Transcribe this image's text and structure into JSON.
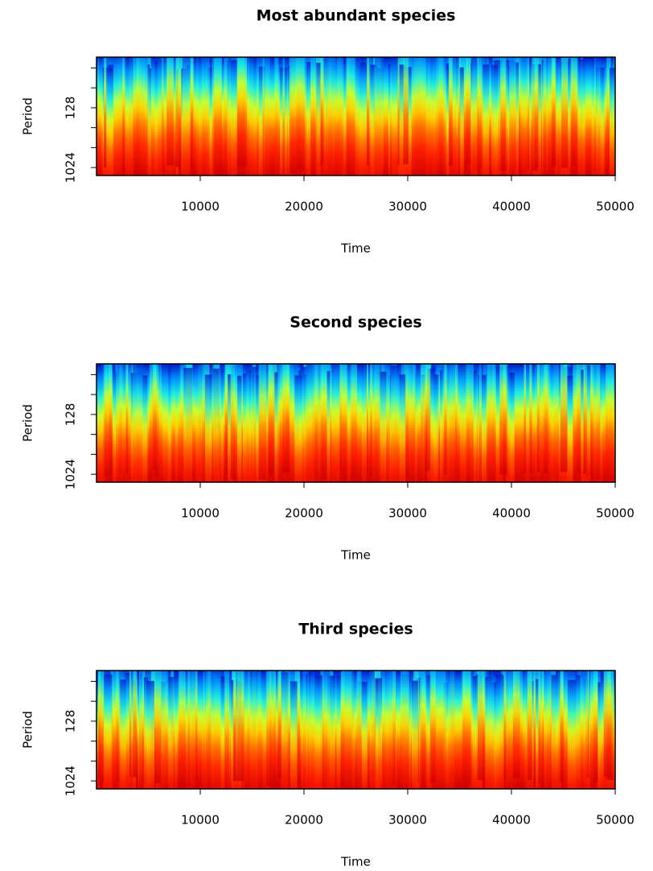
{
  "chart_data": [
    {
      "type": "wavelet-power",
      "title": "Most abundant species",
      "xlabel": "Time",
      "ylabel": "Period",
      "xlim": [
        0,
        50000
      ],
      "xticks": [
        10000,
        20000,
        30000,
        40000,
        50000
      ],
      "ylim": [
        22,
        1350
      ],
      "ylog": true,
      "yreversed": true,
      "yticks": [
        128,
        1024
      ],
      "yminorticks": [
        32,
        64,
        256,
        512
      ]
    },
    {
      "type": "wavelet-power",
      "title": "Second species",
      "xlabel": "Time",
      "ylabel": "Period",
      "xlim": [
        0,
        50000
      ],
      "xticks": [
        10000,
        20000,
        30000,
        40000,
        50000
      ],
      "ylim": [
        22,
        1350
      ],
      "ylog": true,
      "yreversed": true,
      "yticks": [
        128,
        1024
      ],
      "yminorticks": [
        32,
        64,
        256,
        512
      ]
    },
    {
      "type": "wavelet-power",
      "title": "Third species",
      "xlabel": "Time",
      "ylabel": "Period",
      "xlim": [
        0,
        50000
      ],
      "xticks": [
        10000,
        20000,
        30000,
        40000,
        50000
      ],
      "ylim": [
        22,
        1350
      ],
      "ylog": true,
      "yreversed": true,
      "yticks": [
        128,
        1024
      ],
      "yminorticks": [
        32,
        64,
        256,
        512
      ]
    }
  ]
}
